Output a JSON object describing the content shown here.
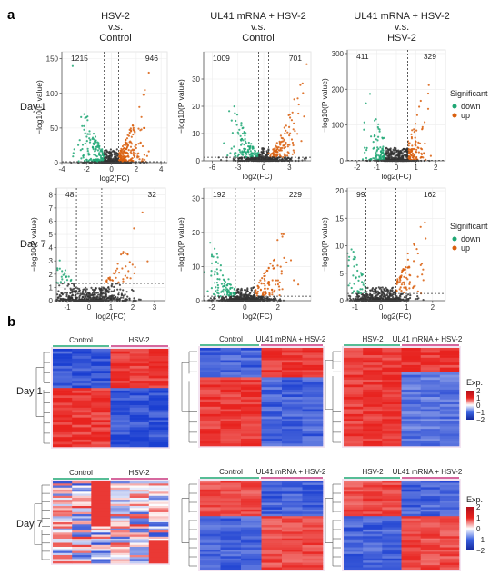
{
  "panel_a": {
    "label": "a",
    "col_titles": [
      [
        "HSV-2",
        "v.s.",
        "Control"
      ],
      [
        "UL41 mRNA + HSV-2",
        "v.s.",
        "Control"
      ],
      [
        "UL41 mRNA + HSV-2",
        "v.s.",
        "HSV-2"
      ]
    ],
    "row_labels": [
      "Day 1",
      "Day 7"
    ],
    "legend": {
      "title": "Significant",
      "items": [
        "down",
        "up"
      ]
    },
    "ylabel": "−log10(P value)",
    "xlabel": "log2(FC)"
  },
  "panel_b": {
    "label": "b",
    "row_labels": [
      "Day 1",
      "Day 7"
    ],
    "col_headers": [
      [
        "Control",
        "HSV-2"
      ],
      [
        "Control",
        "UL41 mRNA + HSV-2"
      ],
      [
        "HSV-2",
        "UL41 mRNA + HSV-2"
      ]
    ],
    "colorbar": {
      "title": "Exp.",
      "ticks": [
        "2",
        "1",
        "0",
        "−1",
        "−2"
      ]
    }
  },
  "colors": {
    "down": "#1fa774",
    "up": "#d95f0e",
    "ns": "#333333",
    "heat_high": "#e8231f",
    "heat_mid": "#ffffff",
    "heat_low": "#1b3fd1"
  },
  "chart_data": [
    {
      "type": "scatter",
      "title": "HSV-2 v.s. Control — Day 1",
      "xlabel": "log2(FC)",
      "ylabel": "−log10(P value)",
      "xlim": [
        -4,
        4.5
      ],
      "ylim": [
        0,
        160
      ],
      "xticks": [
        -4,
        -2,
        0,
        2,
        4
      ],
      "yticks": [
        0,
        50,
        100,
        150
      ],
      "down_count": "1215",
      "up_count": "946",
      "fc_threshold": [
        -0.58,
        0.58
      ],
      "p_threshold": 1.3,
      "series": [
        {
          "name": "down"
        },
        {
          "name": "up"
        }
      ]
    },
    {
      "type": "scatter",
      "title": "UL41 mRNA + HSV-2 v.s. Control — Day 1",
      "xlabel": "log2(FC)",
      "ylabel": "−log10(P value)",
      "xlim": [
        -7,
        5.5
      ],
      "ylim": [
        0,
        40
      ],
      "xticks": [
        -6,
        -3,
        0,
        3
      ],
      "yticks": [
        0,
        10,
        20,
        30
      ],
      "down_count": "1009",
      "up_count": "701",
      "fc_threshold": [
        -0.58,
        0.58
      ],
      "p_threshold": 1.3,
      "series": [
        {
          "name": "down"
        },
        {
          "name": "up"
        }
      ]
    },
    {
      "type": "scatter",
      "title": "UL41 mRNA + HSV-2 v.s. HSV-2 — Day 1",
      "xlabel": "log2(FC)",
      "ylabel": "−log10(P value)",
      "xlim": [
        -2.5,
        2.5
      ],
      "ylim": [
        0,
        310
      ],
      "xticks": [
        -2,
        -1,
        0,
        1,
        2
      ],
      "yticks": [
        0,
        100,
        200,
        300
      ],
      "down_count": "411",
      "up_count": "329",
      "fc_threshold": [
        -0.58,
        0.58
      ],
      "p_threshold": 1.3,
      "series": [
        {
          "name": "down"
        },
        {
          "name": "up"
        }
      ]
    },
    {
      "type": "scatter",
      "title": "HSV-2 v.s. Control — Day 7",
      "xlabel": "log2(FC)",
      "ylabel": "−log10(P value)",
      "xlim": [
        -1.5,
        3.5
      ],
      "ylim": [
        0,
        8.5
      ],
      "xticks": [
        -1,
        0,
        1,
        2,
        3
      ],
      "yticks": [
        0,
        1,
        2,
        3,
        4,
        5,
        6,
        7,
        8
      ],
      "down_count": "48",
      "up_count": "32",
      "fc_threshold": [
        -0.58,
        0.58
      ],
      "p_threshold": 1.3,
      "series": [
        {
          "name": "down"
        },
        {
          "name": "up"
        }
      ]
    },
    {
      "type": "scatter",
      "title": "UL41 mRNA + HSV-2 v.s. Control — Day 7",
      "xlabel": "log2(FC)",
      "ylabel": "−log10(P value)",
      "xlim": [
        -2.5,
        4
      ],
      "ylim": [
        0,
        33
      ],
      "xticks": [
        -2,
        0,
        2
      ],
      "yticks": [
        0,
        10,
        20,
        30
      ],
      "down_count": "192",
      "up_count": "229",
      "fc_threshold": [
        -0.58,
        0.58
      ],
      "p_threshold": 1.3,
      "series": [
        {
          "name": "down"
        },
        {
          "name": "up"
        }
      ]
    },
    {
      "type": "scatter",
      "title": "UL41 mRNA + HSV-2 v.s. HSV-2 — Day 7",
      "xlabel": "log2(FC)",
      "ylabel": "−log10(P value)",
      "xlim": [
        -1.3,
        2.5
      ],
      "ylim": [
        0,
        20.5
      ],
      "xticks": [
        -1,
        0,
        1,
        2
      ],
      "yticks": [
        0,
        5,
        10,
        15,
        20
      ],
      "down_count": "99",
      "up_count": "162",
      "fc_threshold": [
        -0.58,
        0.58
      ],
      "p_threshold": 1.3,
      "series": [
        {
          "name": "down"
        },
        {
          "name": "up"
        }
      ]
    }
  ],
  "heatmaps": [
    {
      "day": "Day 1",
      "comparison": "HSV-2 vs Control",
      "columns": 6,
      "top_block": "low-high",
      "bottom_block": "high-low"
    },
    {
      "day": "Day 1",
      "comparison": "UL41 vs Control",
      "columns": 6,
      "top_block": "low-high",
      "bottom_block": "high-low"
    },
    {
      "day": "Day 1",
      "comparison": "UL41 vs HSV-2",
      "columns": 6,
      "top_block": "high-high",
      "bottom_block": "high-low"
    },
    {
      "day": "Day 7",
      "comparison": "HSV-2 vs Control",
      "columns": 6,
      "top_block": "mixed",
      "bottom_block": "mixed"
    },
    {
      "day": "Day 7",
      "comparison": "UL41 vs Control",
      "columns": 6,
      "top_block": "high-low",
      "bottom_block": "low-high"
    },
    {
      "day": "Day 7",
      "comparison": "UL41 vs HSV-2",
      "columns": 6,
      "top_block": "high-low",
      "bottom_block": "low-high"
    }
  ]
}
